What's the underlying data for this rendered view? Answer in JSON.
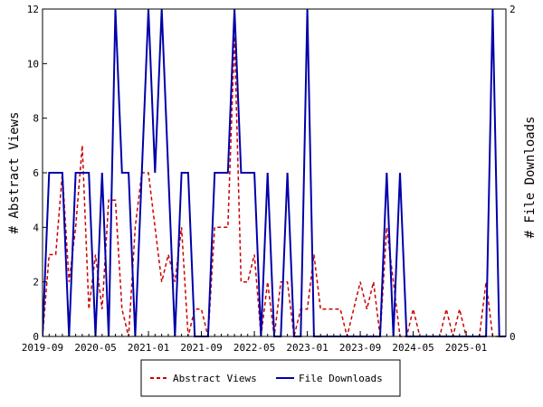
{
  "chart_data": {
    "type": "line",
    "ylabel_left": "# Abstract Views",
    "ylabel_right": "# File Downloads",
    "ylim_left": [
      0,
      12
    ],
    "ylim_right": [
      0,
      2
    ],
    "yticks_left": [
      "0",
      "2",
      "4",
      "6",
      "8",
      "10",
      "12"
    ],
    "yticks_right": [
      "0",
      "2"
    ],
    "x_tick_labels": [
      "2019-09",
      "2020-05",
      "2021-01",
      "2021-09",
      "2022-05",
      "2023-01",
      "2023-09",
      "2024-05",
      "2025-01"
    ],
    "grid": false,
    "legend_position": "bottom",
    "x_months": [
      "2019-09",
      "2019-10",
      "2019-11",
      "2019-12",
      "2020-01",
      "2020-02",
      "2020-03",
      "2020-04",
      "2020-05",
      "2020-06",
      "2020-07",
      "2020-08",
      "2020-09",
      "2020-10",
      "2020-11",
      "2020-12",
      "2021-01",
      "2021-02",
      "2021-03",
      "2021-04",
      "2021-05",
      "2021-06",
      "2021-07",
      "2021-08",
      "2021-09",
      "2021-10",
      "2021-11",
      "2021-12",
      "2022-01",
      "2022-02",
      "2022-03",
      "2022-04",
      "2022-05",
      "2022-06",
      "2022-07",
      "2022-08",
      "2022-09",
      "2022-10",
      "2022-11",
      "2022-12",
      "2023-01",
      "2023-02",
      "2023-03",
      "2023-04",
      "2023-05",
      "2023-06",
      "2023-07",
      "2023-08",
      "2023-09",
      "2023-10",
      "2023-11",
      "2023-12",
      "2024-01",
      "2024-02",
      "2024-03",
      "2024-04",
      "2024-05",
      "2024-06",
      "2024-07",
      "2024-08",
      "2024-09",
      "2024-10",
      "2024-11",
      "2024-12",
      "2025-01",
      "2025-02",
      "2025-03",
      "2025-04",
      "2025-05",
      "2025-06",
      "2025-07"
    ],
    "series": [
      {
        "name": "Abstract Views",
        "axis": "left",
        "color": "#cc0000",
        "style": "dashed",
        "values": [
          0,
          3,
          3,
          6,
          2,
          4,
          7,
          1,
          3,
          1,
          5,
          5,
          1,
          0,
          4,
          6,
          6,
          4,
          2,
          3,
          2,
          4,
          0,
          1,
          1,
          0,
          4,
          4,
          4,
          11,
          2,
          2,
          3,
          0,
          2,
          0,
          2,
          2,
          0,
          1,
          1,
          3,
          1,
          1,
          1,
          1,
          0,
          1,
          2,
          1,
          2,
          0,
          4,
          2,
          0,
          0,
          1,
          0,
          0,
          0,
          0,
          1,
          0,
          1,
          0,
          0,
          0,
          2,
          0,
          0,
          0
        ]
      },
      {
        "name": "File Downloads",
        "axis": "right",
        "color": "#0000aa",
        "style": "solid",
        "values": [
          0,
          1,
          1,
          1,
          0,
          1,
          1,
          1,
          0,
          1,
          0,
          2,
          1,
          1,
          0,
          1,
          2,
          1,
          2,
          1,
          0,
          1,
          1,
          0,
          0,
          0,
          1,
          1,
          1,
          2,
          1,
          1,
          1,
          0,
          1,
          0,
          0,
          1,
          0,
          0,
          2,
          0,
          0,
          0,
          0,
          0,
          0,
          0,
          0,
          0,
          0,
          0,
          1,
          0,
          1,
          0,
          0,
          0,
          0,
          0,
          0,
          0,
          0,
          0,
          0,
          0,
          0,
          0,
          2,
          0,
          0
        ]
      }
    ]
  }
}
